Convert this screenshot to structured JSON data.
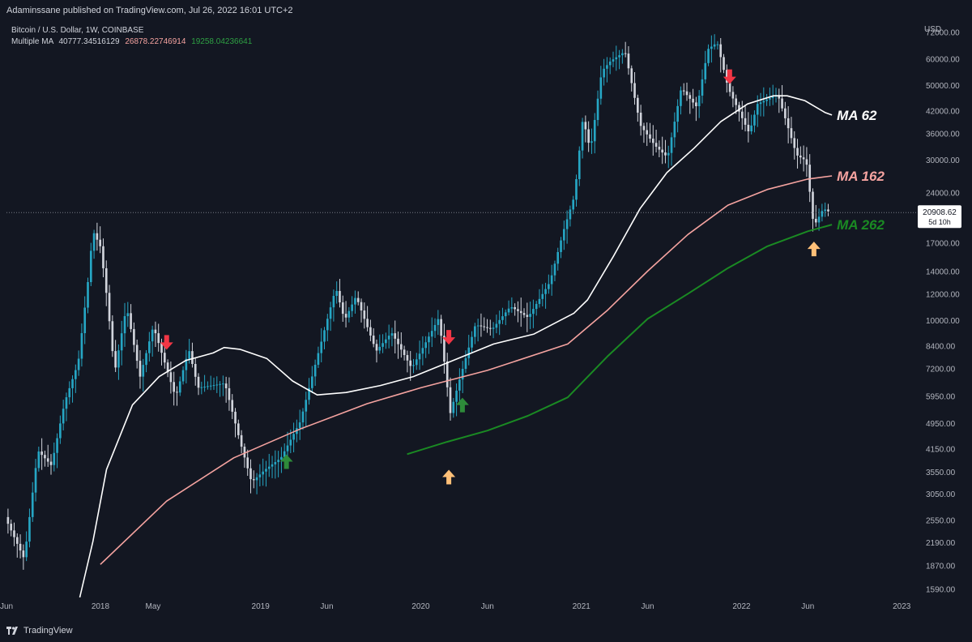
{
  "header": {
    "publisher": "Adaminssane published on TradingView.com, Jul 26, 2022 16:01 UTC+2"
  },
  "legend": {
    "symbol": "Bitcoin / U.S. Dollar, 1W, COINBASE",
    "indicator": "Multiple MA",
    "values": [
      "40777.34516129",
      "26878.22746914",
      "19258.04236641"
    ]
  },
  "footer": {
    "brand": "TradingView"
  },
  "colors": {
    "background": "#131722",
    "up": "#26a6c4",
    "down": "#d1d4dc",
    "ma62": "#ffffff",
    "ma162": "#f5a3a0",
    "ma262": "#1a8a23",
    "red_arrow": "#f23645",
    "green_arrow": "#2e8b3a",
    "orange_arrow": "#ffc078"
  },
  "price_label": {
    "value": "20908.62",
    "sub": "5d 10h"
  },
  "chart_data": {
    "type": "line",
    "y_scale": "log",
    "y_unit": "USD",
    "ylim": [
      1500,
      78000
    ],
    "y_ticks": [
      72000,
      60000,
      50000,
      42000,
      36000,
      30000,
      24000,
      17000,
      14000,
      12000,
      10000,
      8400,
      7200,
      5950,
      4950,
      4150,
      3550,
      3050,
      2550,
      2190,
      1870,
      1590
    ],
    "y_tick_labels": [
      "72000.00",
      "60000.00",
      "50000.00",
      "42000.00",
      "36000.00",
      "30000.00",
      "24000.00",
      "17000.00",
      "14000.00",
      "12000.00",
      "10000.00",
      "8400.00",
      "7200.00",
      "5950.00",
      "4950.00",
      "4150.00",
      "3550.00",
      "3050.00",
      "2550.00",
      "2190.00",
      "1870.00",
      "1590.00"
    ],
    "xlim": [
      "2017-06-01",
      "2023-02-01"
    ],
    "x_ticks": [
      {
        "date": "2017-06-01",
        "label": "Jun"
      },
      {
        "date": "2018-01-01",
        "label": "2018"
      },
      {
        "date": "2018-05-01",
        "label": "May"
      },
      {
        "date": "2019-01-01",
        "label": "2019"
      },
      {
        "date": "2019-06-01",
        "label": "Jun"
      },
      {
        "date": "2020-01-01",
        "label": "2020"
      },
      {
        "date": "2020-06-01",
        "label": "Jun"
      },
      {
        "date": "2021-01-01",
        "label": "2021"
      },
      {
        "date": "2021-06-01",
        "label": "Jun"
      },
      {
        "date": "2022-01-01",
        "label": "2022"
      },
      {
        "date": "2022-06-01",
        "label": "Jun"
      },
      {
        "date": "2023-01-01",
        "label": "2023"
      }
    ],
    "price": [
      [
        "2017-06-01",
        2600
      ],
      [
        "2017-07-15",
        1950
      ],
      [
        "2017-08-15",
        4100
      ],
      [
        "2017-09-15",
        3700
      ],
      [
        "2017-10-15",
        5700
      ],
      [
        "2017-11-15",
        7500
      ],
      [
        "2017-12-10",
        14000
      ],
      [
        "2017-12-18",
        18500
      ],
      [
        "2018-01-05",
        16500
      ],
      [
        "2018-01-20",
        11500
      ],
      [
        "2018-02-06",
        7000
      ],
      [
        "2018-03-05",
        11000
      ],
      [
        "2018-04-05",
        6800
      ],
      [
        "2018-05-05",
        9600
      ],
      [
        "2018-06-25",
        5900
      ],
      [
        "2018-07-25",
        8200
      ],
      [
        "2018-08-15",
        6300
      ],
      [
        "2018-10-15",
        6500
      ],
      [
        "2018-11-20",
        4300
      ],
      [
        "2018-12-15",
        3300
      ],
      [
        "2019-01-15",
        3600
      ],
      [
        "2019-02-20",
        3900
      ],
      [
        "2019-04-05",
        5000
      ],
      [
        "2019-05-15",
        7900
      ],
      [
        "2019-06-25",
        12500
      ],
      [
        "2019-07-15",
        10000
      ],
      [
        "2019-08-10",
        11800
      ],
      [
        "2019-09-25",
        8100
      ],
      [
        "2019-10-30",
        9200
      ],
      [
        "2019-12-15",
        7200
      ],
      [
        "2020-01-30",
        9300
      ],
      [
        "2020-02-15",
        10200
      ],
      [
        "2020-03-12",
        5300
      ],
      [
        "2020-04-01",
        6600
      ],
      [
        "2020-05-08",
        9700
      ],
      [
        "2020-06-15",
        9400
      ],
      [
        "2020-07-27",
        11000
      ],
      [
        "2020-09-05",
        10200
      ],
      [
        "2020-10-25",
        13000
      ],
      [
        "2020-11-25",
        18500
      ],
      [
        "2020-12-20",
        23500
      ],
      [
        "2021-01-08",
        40000
      ],
      [
        "2021-01-25",
        32000
      ],
      [
        "2021-02-20",
        55000
      ],
      [
        "2021-03-12",
        59000
      ],
      [
        "2021-04-14",
        63000
      ],
      [
        "2021-05-19",
        38000
      ],
      [
        "2021-06-22",
        33000
      ],
      [
        "2021-07-20",
        30500
      ],
      [
        "2021-08-20",
        49000
      ],
      [
        "2021-09-25",
        43000
      ],
      [
        "2021-10-20",
        64000
      ],
      [
        "2021-11-10",
        67000
      ],
      [
        "2021-12-05",
        49000
      ],
      [
        "2022-01-22",
        36000
      ],
      [
        "2022-02-10",
        44000
      ],
      [
        "2022-03-28",
        47000
      ],
      [
        "2022-05-10",
        31000
      ],
      [
        "2022-06-01",
        29800
      ],
      [
        "2022-06-18",
        19000
      ],
      [
        "2022-07-10",
        21500
      ],
      [
        "2022-07-26",
        20908
      ]
    ],
    "series": [
      {
        "name": "MA 62",
        "values": [
          [
            "2017-11-15",
            1500
          ],
          [
            "2017-12-15",
            2200
          ],
          [
            "2018-01-15",
            3600
          ],
          [
            "2018-03-15",
            5600
          ],
          [
            "2018-05-15",
            6800
          ],
          [
            "2018-07-15",
            7600
          ],
          [
            "2018-09-15",
            8000
          ],
          [
            "2018-10-10",
            8300
          ],
          [
            "2018-11-15",
            8200
          ],
          [
            "2019-01-15",
            7700
          ],
          [
            "2019-03-15",
            6600
          ],
          [
            "2019-05-10",
            6000
          ],
          [
            "2019-07-15",
            6100
          ],
          [
            "2019-10-01",
            6400
          ],
          [
            "2019-12-15",
            6800
          ],
          [
            "2020-03-15",
            7600
          ],
          [
            "2020-06-15",
            8500
          ],
          [
            "2020-09-15",
            9100
          ],
          [
            "2020-12-15",
            10500
          ],
          [
            "2021-01-15",
            11500
          ],
          [
            "2021-03-15",
            15500
          ],
          [
            "2021-05-15",
            21500
          ],
          [
            "2021-07-15",
            27500
          ],
          [
            "2021-09-15",
            32500
          ],
          [
            "2021-11-15",
            39000
          ],
          [
            "2022-01-15",
            44000
          ],
          [
            "2022-03-15",
            46500
          ],
          [
            "2022-04-15",
            46500
          ],
          [
            "2022-05-25",
            45000
          ],
          [
            "2022-07-10",
            41500
          ],
          [
            "2022-07-26",
            40777
          ]
        ]
      },
      {
        "name": "MA 162",
        "values": [
          [
            "2018-01-01",
            1880
          ],
          [
            "2018-06-01",
            2900
          ],
          [
            "2018-11-01",
            3900
          ],
          [
            "2019-04-01",
            4750
          ],
          [
            "2019-09-01",
            5650
          ],
          [
            "2020-01-01",
            6300
          ],
          [
            "2020-06-01",
            7100
          ],
          [
            "2020-12-01",
            8500
          ],
          [
            "2021-03-01",
            10700
          ],
          [
            "2021-06-01",
            14000
          ],
          [
            "2021-09-01",
            18000
          ],
          [
            "2021-12-01",
            22000
          ],
          [
            "2022-03-01",
            24500
          ],
          [
            "2022-06-01",
            26300
          ],
          [
            "2022-07-26",
            26878
          ]
        ]
      },
      {
        "name": "MA 262",
        "values": [
          [
            "2019-12-01",
            4000
          ],
          [
            "2020-03-01",
            4350
          ],
          [
            "2020-06-01",
            4700
          ],
          [
            "2020-09-01",
            5200
          ],
          [
            "2020-12-01",
            5900
          ],
          [
            "2021-03-01",
            7800
          ],
          [
            "2021-06-01",
            10100
          ],
          [
            "2021-09-01",
            12000
          ],
          [
            "2021-12-01",
            14300
          ],
          [
            "2022-03-01",
            16600
          ],
          [
            "2022-06-01",
            18400
          ],
          [
            "2022-07-26",
            19258
          ]
        ]
      }
    ],
    "annotations": [
      {
        "text": "MA 62",
        "target": "MA 62"
      },
      {
        "text": "MA 162",
        "target": "MA 162"
      },
      {
        "text": "MA 262",
        "target": "MA 262"
      }
    ],
    "markers": [
      {
        "kind": "down",
        "color": "red",
        "date": "2018-06-01",
        "price": 8600
      },
      {
        "kind": "down",
        "color": "red",
        "date": "2020-03-05",
        "price": 8900
      },
      {
        "kind": "down",
        "color": "red",
        "date": "2021-12-05",
        "price": 53000
      },
      {
        "kind": "up",
        "color": "green",
        "date": "2019-03-01",
        "price": 3800
      },
      {
        "kind": "up",
        "color": "green",
        "date": "2020-04-05",
        "price": 5600
      },
      {
        "kind": "up",
        "color": "orange",
        "date": "2020-03-05",
        "price": 3420
      },
      {
        "kind": "up",
        "color": "orange",
        "date": "2022-06-15",
        "price": 16300
      }
    ]
  }
}
